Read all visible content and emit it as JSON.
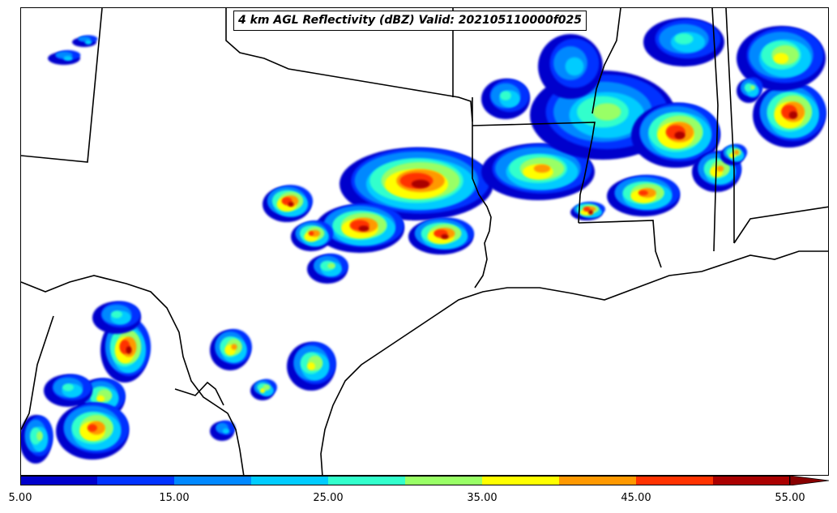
{
  "title": "4 km AGL Reflectivity (dBZ) Valid: 202105110000f025",
  "colorbar": {
    "levels": [
      5,
      10,
      15,
      20,
      25,
      30,
      35,
      40,
      45,
      50,
      55
    ],
    "colors": [
      "#0000cc",
      "#0033ff",
      "#0088ff",
      "#00ccff",
      "#33ffcc",
      "#99ff66",
      "#ffff00",
      "#ff9900",
      "#ff3300",
      "#aa0000"
    ],
    "extend_color": "#880000",
    "tick_labels": [
      "5.00",
      "15.00",
      "25.00",
      "35.00",
      "45.00",
      "55.00"
    ]
  },
  "map": {
    "region": "South-central United States",
    "field": "reflectivity"
  }
}
